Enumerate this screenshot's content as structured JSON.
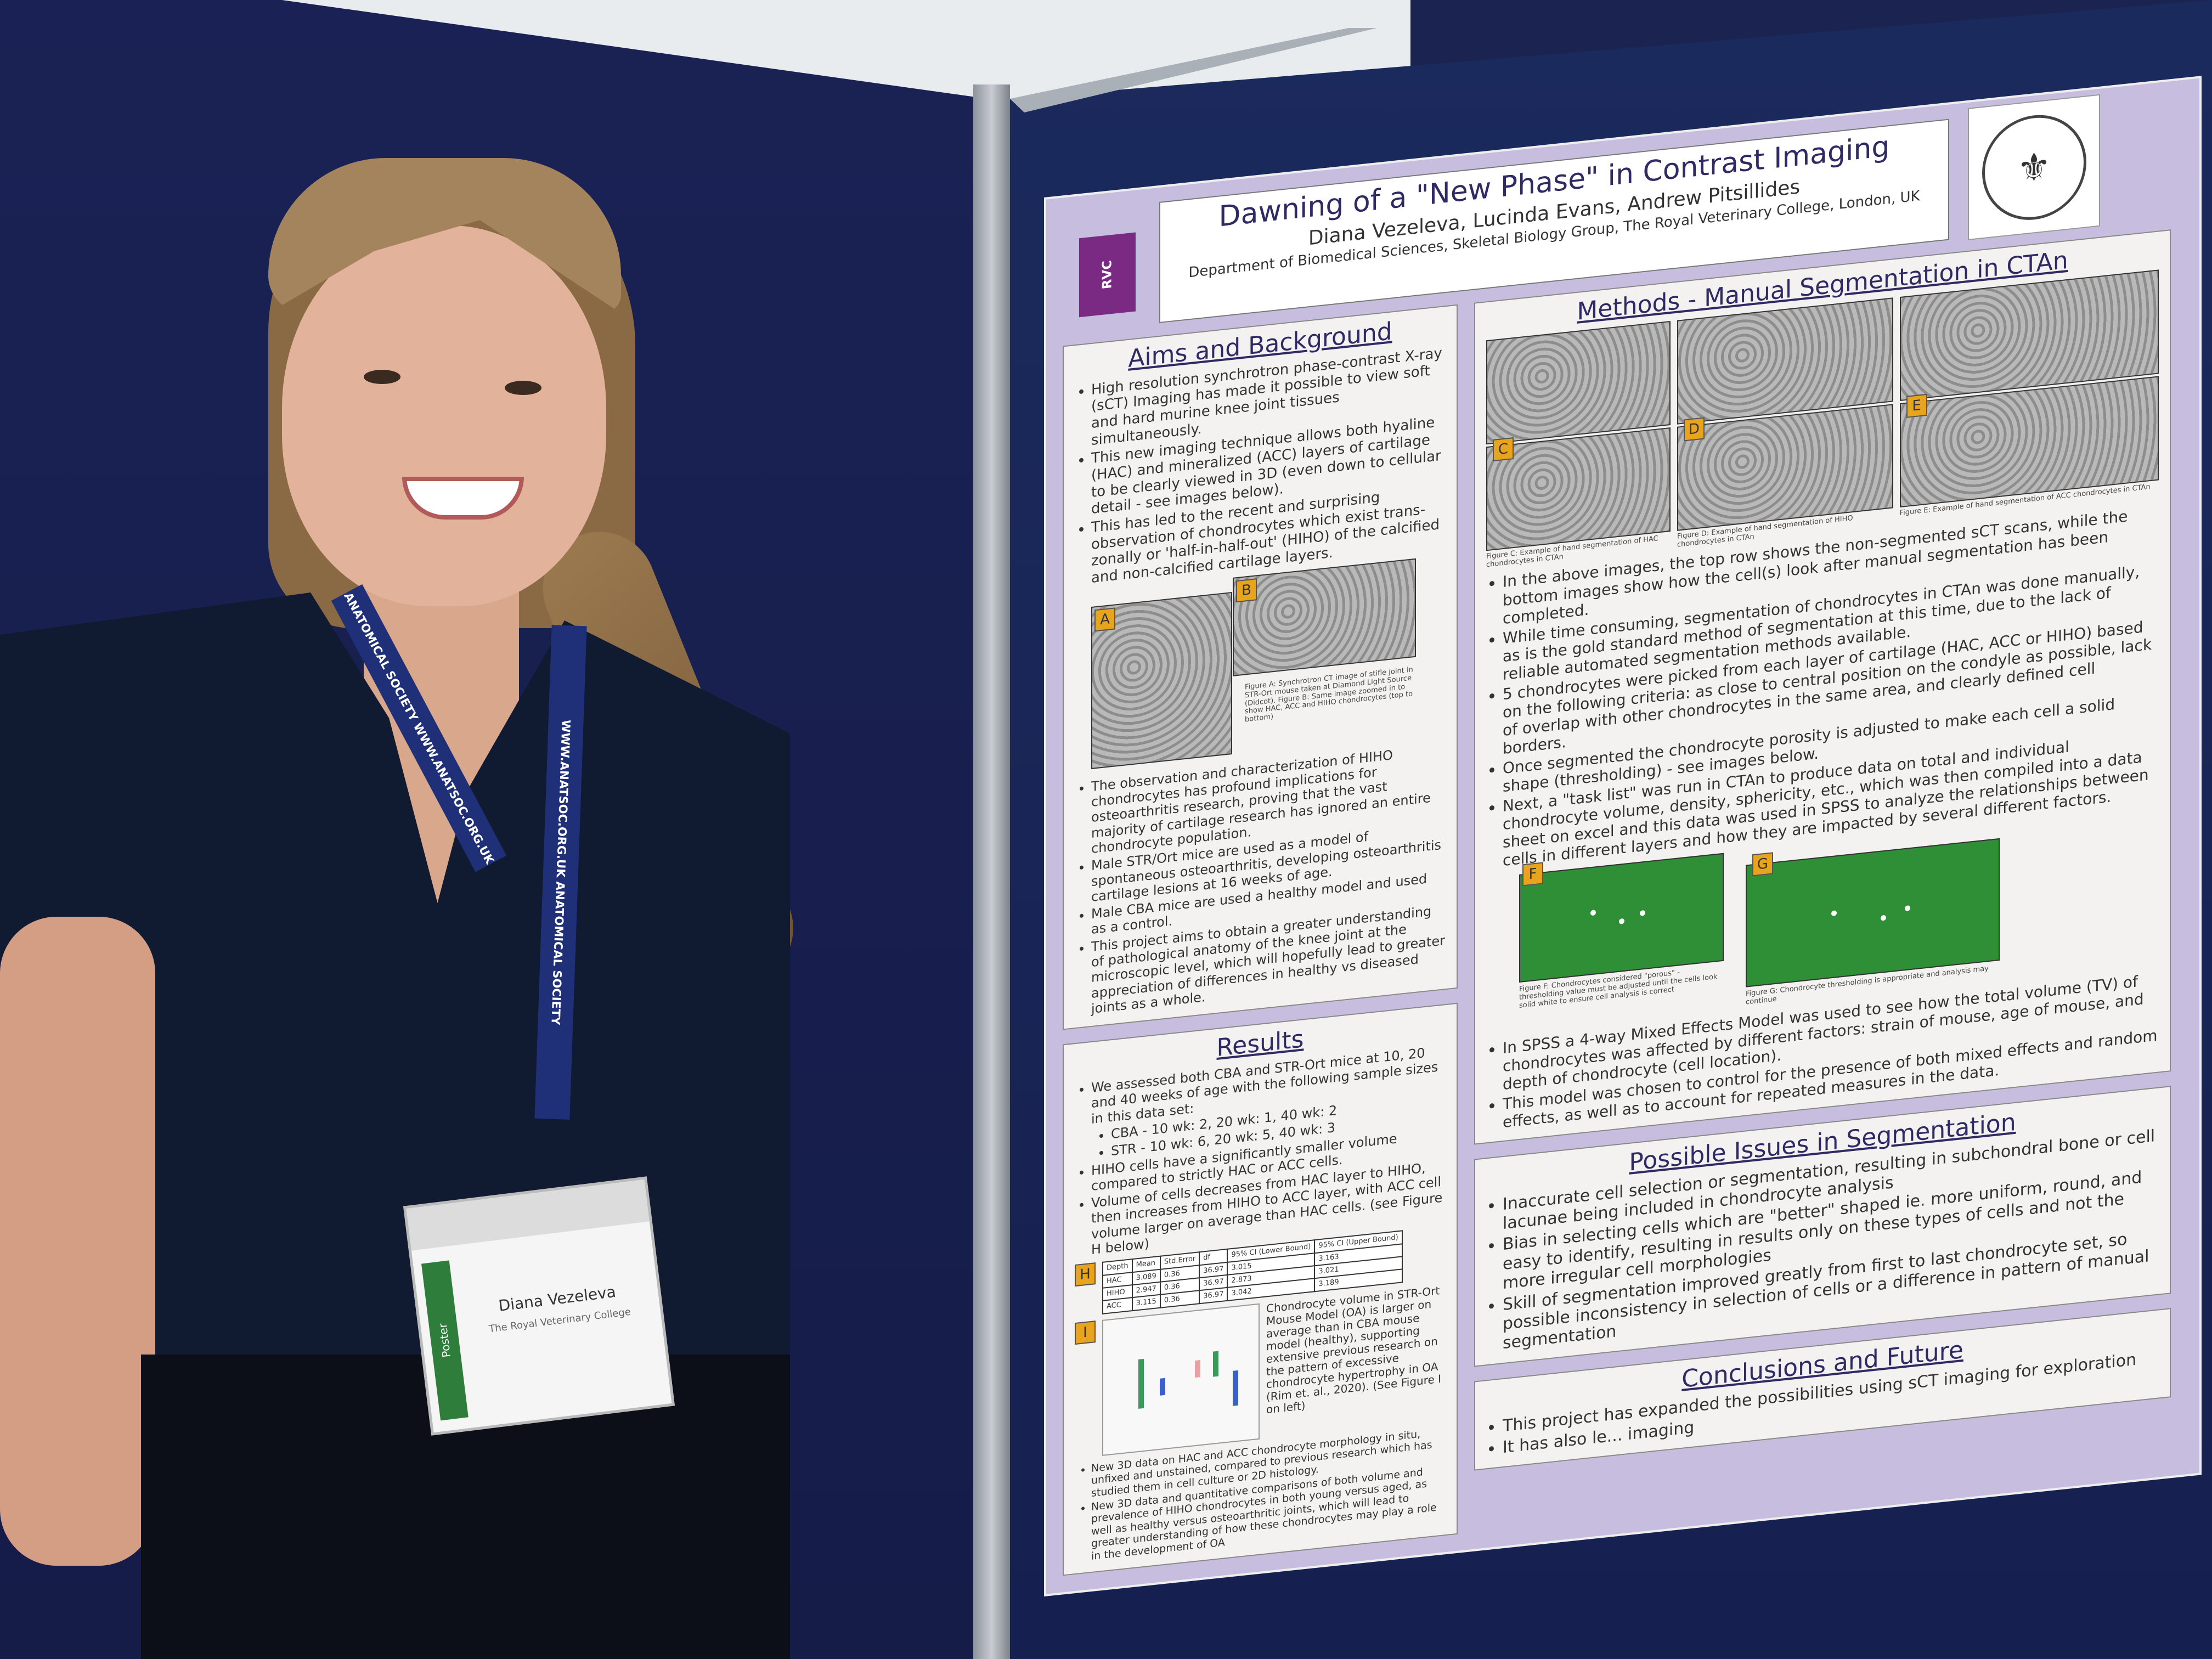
{
  "poster": {
    "title": "Dawning of a \"New Phase\" in Contrast Imaging",
    "authors": "Diana Vezeleva, Lucinda Evans, Andrew Pitsillides",
    "department": "Department of Biomedical Sciences, Skeletal Biology Group, The Royal Veterinary College, London, UK",
    "logo_left": "RVC Royal Veterinary College",
    "logo_right": "ANATOMICAL SOCIETY 1887",
    "aims": {
      "heading": "Aims and Background",
      "bullets_top": [
        "High resolution synchrotron phase-contrast X-ray (sCT) Imaging has made it possible to view soft and hard murine knee joint tissues simultaneously.",
        "This new imaging technique allows both hyaline (HAC) and mineralized (ACC) layers of cartilage to be clearly viewed in 3D (even down to cellular detail - see images below).",
        "This has led to the recent and surprising observation of chondrocytes which exist trans-zonally or 'half-in-half-out' (HIHO) of the calcified and non-calcified cartilage layers."
      ],
      "tag_a": "A",
      "tag_b": "B",
      "caption": "Figure A: Synchrotron CT image of stifle joint in STR-Ort mouse taken at Diamond Light Source (Didcot). Figure B: Same image zoomed in to show HAC, ACC and HIHO chondrocytes (top to bottom)",
      "bullets_bottom": [
        "The observation and characterization of HIHO chondrocytes has profound implications for osteoarthritis research, proving that the vast majority of cartilage research has ignored an entire chondrocyte population.",
        "Male STR/Ort mice are used as a model of spontaneous osteoarthritis, developing osteoarthritis cartilage lesions at 16 weeks of age.",
        "Male CBA mice are used a healthy model and used as a control.",
        "This project aims to obtain a greater understanding of pathological anatomy of the knee joint at the microscopic level, which will hopefully lead to greater appreciation of differences in healthy vs diseased joints as a whole."
      ]
    },
    "results": {
      "heading": "Results",
      "bullets": [
        "We assessed both CBA and STR-Ort mice at 10, 20 and 40 weeks of age with the following sample sizes in this data set:",
        "CBA - 10 wk: 2, 20 wk: 1, 40 wk: 2",
        "STR - 10 wk: 6, 20 wk: 5, 40 wk: 3",
        "HIHO cells have a significantly smaller volume compared to strictly HAC or ACC cells.",
        "Volume of cells decreases from HAC layer to HIHO, then increases from HIHO to ACC layer, with ACC cell volume larger on average than HAC cells. (see Figure H below)"
      ],
      "tag_h": "H",
      "tag_i": "I",
      "table": {
        "headers": [
          "Depth",
          "Mean",
          "Std.Error",
          "df",
          "95% CI (Lower Bound)",
          "95% CI (Upper Bound)"
        ],
        "rows": [
          [
            "HAC",
            "3.089",
            "0.36",
            "36.97",
            "3.015",
            "3.163"
          ],
          [
            "HIHO",
            "2.947",
            "0.36",
            "36.97",
            "2.873",
            "3.021"
          ],
          [
            "ACC",
            "3.115",
            "0.36",
            "36.97",
            "3.042",
            "3.189"
          ]
        ]
      },
      "figure_i_text": "Chondrocyte volume in STR-Ort Mouse Model (OA) is larger on average than in CBA mouse model (healthy), supporting extensive previous research on the pattern of excessive chondrocyte hypertrophy in OA (Rim et. al., 2020). (See Figure I on left)",
      "bullets_bottom": [
        "New 3D data on HAC and ACC chondrocyte morphology in situ, unfixed and unstained, compared to previous research which has studied them in cell culture or 2D histology.",
        "New 3D data and quantitative comparisons of both volume and prevalence of HIHO chondrocytes in both young versus aged, as well as healthy versus osteoarthritic joints, which will lead to greater understanding of how these chondrocytes may play a role in the development of OA"
      ]
    },
    "methods": {
      "heading": "Methods - Manual Segmentation in CTAn",
      "tag_c": "C",
      "tag_d": "D",
      "tag_e": "E",
      "caption_c": "Figure C: Example of hand segmentation of HAC chondrocytes in CTAn",
      "caption_d": "Figure D: Example of hand segmentation of HIHO chondrocytes in CTAn",
      "caption_e": "Figure E: Example of hand segmentation of ACC chondrocytes in CTAn",
      "bullets": [
        "In the above images, the top row shows the non-segmented sCT scans, while the bottom images show how the cell(s) look after manual segmentation has been completed.",
        "While time consuming, segmentation of chondrocytes in CTAn was done manually, as is the gold standard method of segmentation at this time, due to the lack of reliable automated segmentation methods available.",
        "5 chondrocytes were picked from each layer of cartilage (HAC, ACC or HIHO) based on the following criteria: as close to central position on the condyle as possible, lack of overlap with other chondrocytes in the same area, and clearly defined cell borders.",
        "Once segmented the chondrocyte porosity is adjusted to make each cell a solid shape (thresholding) - see images below.",
        "Next, a \"task list\" was run in CTAn to produce data on total and individual chondrocyte volume, density, sphericity, etc., which was then compiled into a data sheet on excel and this data was used in SPSS to analyze the relationships between cells in different layers and how they are impacted by several different factors."
      ],
      "tag_f": "F",
      "tag_g": "G",
      "caption_f": "Figure F: Chondrocytes considered \"porous\" - thresholding value must be adjusted until the cells look solid white to ensure cell analysis is correct",
      "caption_g": "Figure G: Chondrocyte thresholding is appropriate and analysis may continue",
      "bullets_bottom": [
        "In SPSS a 4-way Mixed Effects Model was used to see how the total volume (TV) of chondrocytes was affected by different factors: strain of mouse, age of mouse, and depth of chondrocyte (cell location).",
        "This model was chosen to control for the presence of both mixed effects and random effects, as well as to account for repeated measures in the data."
      ]
    },
    "issues": {
      "heading": "Possible Issues in Segmentation",
      "bullets": [
        "Inaccurate cell selection or segmentation, resulting in subchondral bone or cell lacunae being included in chondrocyte analysis",
        "Bias in selecting cells which are \"better\" shaped ie. more uniform, round, and easy to identify, resulting in results only on these types of cells and not the more irregular cell morphologies",
        "Skill of segmentation improved greatly from first to last chondrocyte set, so possible inconsistency in selection of cells or a difference in pattern of manual segmentation"
      ]
    },
    "conclusions": {
      "heading": "Conclusions and Future",
      "bullets": [
        "This project has expanded the possibilities using sCT imaging for exploration",
        "It has also le... imaging"
      ]
    }
  },
  "person": {
    "lanyard_text_left": "ANATOMICAL SOCIETY  WWW.ANATSOC.ORG.UK",
    "lanyard_text_right": "WWW.ANATSOC.ORG.UK  ANATOMICAL SOCIETY",
    "badge_strip": "Poster",
    "badge_name": "Diana Vezeleva",
    "badge_org": "The Royal Veterinary College"
  },
  "colors": {
    "board": "#1b2450",
    "poster_border": "#c7bedf",
    "heading": "#2f2a63",
    "tag": "#e8a41c",
    "threshold_green": "#2f8f36",
    "lanyard": "#1f2f78"
  }
}
